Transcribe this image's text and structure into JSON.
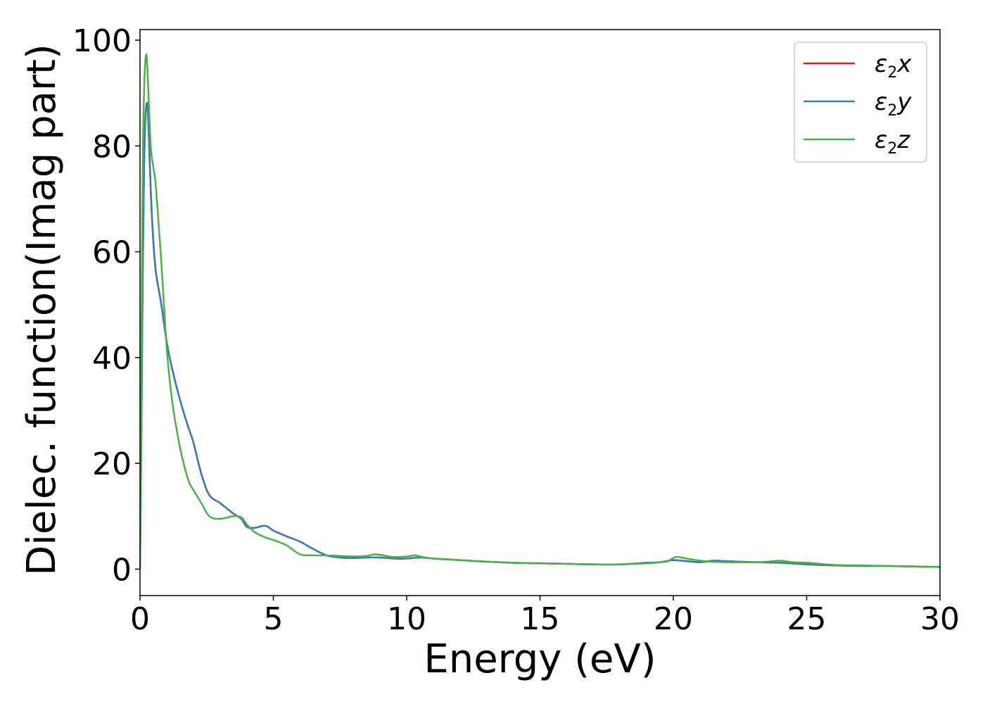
{
  "chart_data": {
    "type": "line",
    "xlabel": "Energy (eV)",
    "ylabel": "Dielec. function(Imag part)",
    "xlim": [
      0,
      30
    ],
    "ylim": [
      -5,
      102
    ],
    "xticks": [
      0,
      5,
      10,
      15,
      20,
      25,
      30
    ],
    "yticks": [
      0,
      20,
      40,
      60,
      80,
      100
    ],
    "grid": false,
    "legend_position": "top-right",
    "series": [
      {
        "name": "ε2x",
        "legend_base": "ε",
        "legend_sub": "2",
        "legend_var": "x",
        "color": "#e41a1c",
        "x": [
          0,
          0.05,
          0.1,
          0.15,
          0.2,
          0.25,
          0.3,
          0.4,
          0.5,
          0.6,
          0.8,
          1.0,
          1.2,
          1.5,
          1.8,
          2.0,
          2.3,
          2.6,
          3.0,
          3.5,
          3.8,
          4.0,
          4.3,
          4.7,
          5.0,
          5.5,
          6.0,
          6.5,
          7.0,
          7.5,
          8.0,
          8.5,
          9.0,
          9.5,
          10.0,
          10.5,
          11.0,
          12.0,
          13.0,
          14.0,
          15.0,
          16.0,
          17.0,
          18.0,
          19.0,
          19.5,
          20.0,
          20.5,
          21.0,
          21.5,
          22.0,
          22.5,
          23.0,
          24.0,
          25.0,
          26.0,
          27.0,
          28.0,
          29.0,
          30.0
        ],
        "values": [
          0,
          25,
          55,
          75,
          85,
          88,
          86,
          72,
          62,
          56,
          50,
          43,
          38,
          32,
          27,
          24,
          18,
          14,
          12.5,
          10.5,
          9.5,
          8,
          7.8,
          8.2,
          7.3,
          6.2,
          5.2,
          3.8,
          2.6,
          2.2,
          2.1,
          2.2,
          2.2,
          2.0,
          2.0,
          2.2,
          2.0,
          1.7,
          1.4,
          1.2,
          1.1,
          1.0,
          0.9,
          0.9,
          1.2,
          1.3,
          1.7,
          1.5,
          1.3,
          1.6,
          1.5,
          1.4,
          1.3,
          1.2,
          0.9,
          0.7,
          0.6,
          0.6,
          0.5,
          0.4
        ]
      },
      {
        "name": "ε2y",
        "legend_base": "ε",
        "legend_sub": "2",
        "legend_var": "y",
        "color": "#377eb8",
        "x": [
          0,
          0.05,
          0.1,
          0.15,
          0.2,
          0.25,
          0.3,
          0.4,
          0.5,
          0.6,
          0.8,
          1.0,
          1.2,
          1.5,
          1.8,
          2.0,
          2.3,
          2.6,
          3.0,
          3.5,
          3.8,
          4.0,
          4.3,
          4.7,
          5.0,
          5.5,
          6.0,
          6.5,
          7.0,
          7.5,
          8.0,
          8.5,
          9.0,
          9.5,
          10.0,
          10.5,
          11.0,
          12.0,
          13.0,
          14.0,
          15.0,
          16.0,
          17.0,
          18.0,
          19.0,
          19.5,
          20.0,
          20.5,
          21.0,
          21.5,
          22.0,
          22.5,
          23.0,
          24.0,
          25.0,
          26.0,
          27.0,
          28.0,
          29.0,
          30.0
        ],
        "values": [
          0,
          25,
          55,
          75,
          85,
          88,
          86,
          72,
          62,
          56,
          50,
          43,
          38,
          32,
          27,
          24,
          18,
          14,
          12.5,
          10.5,
          9.5,
          8,
          7.8,
          8.2,
          7.3,
          6.2,
          5.2,
          3.8,
          2.6,
          2.2,
          2.1,
          2.2,
          2.2,
          2.0,
          2.0,
          2.2,
          2.0,
          1.7,
          1.4,
          1.2,
          1.1,
          1.0,
          0.9,
          0.9,
          1.2,
          1.3,
          1.7,
          1.5,
          1.3,
          1.6,
          1.5,
          1.4,
          1.3,
          1.2,
          0.9,
          0.7,
          0.6,
          0.6,
          0.5,
          0.4
        ]
      },
      {
        "name": "ε2z",
        "legend_base": "ε",
        "legend_sub": "2",
        "legend_var": "z",
        "color": "#4daf4a",
        "x": [
          0,
          0.05,
          0.1,
          0.15,
          0.2,
          0.25,
          0.3,
          0.4,
          0.5,
          0.6,
          0.8,
          1.0,
          1.2,
          1.5,
          1.8,
          2.0,
          2.3,
          2.6,
          3.0,
          3.5,
          3.8,
          4.0,
          4.3,
          4.7,
          5.0,
          5.5,
          6.0,
          6.5,
          7.0,
          7.5,
          8.0,
          8.5,
          8.8,
          9.0,
          9.5,
          10.0,
          10.3,
          10.5,
          11.0,
          12.0,
          13.0,
          14.0,
          15.0,
          16.0,
          17.0,
          18.0,
          19.0,
          19.5,
          19.8,
          20.1,
          20.5,
          21.0,
          21.5,
          22.0,
          22.5,
          23.0,
          23.5,
          24.0,
          24.5,
          25.0,
          26.0,
          27.0,
          28.0,
          29.0,
          30.0
        ],
        "values": [
          0,
          40,
          75,
          90,
          96,
          97,
          92,
          80,
          76,
          72,
          58,
          42,
          32,
          23,
          17,
          15,
          12.5,
          10,
          9.5,
          10,
          9.8,
          8.5,
          7,
          6,
          5.5,
          4.5,
          2.8,
          2.6,
          2.6,
          2.5,
          2.4,
          2.5,
          2.8,
          2.7,
          2.3,
          2.4,
          2.6,
          2.4,
          2.0,
          1.7,
          1.4,
          1.2,
          1.1,
          1.0,
          0.9,
          0.9,
          1.1,
          1.3,
          1.5,
          2.3,
          2.0,
          1.6,
          1.4,
          1.3,
          1.3,
          1.3,
          1.4,
          1.6,
          1.3,
          1.2,
          0.8,
          0.7,
          0.6,
          0.5,
          0.4
        ]
      }
    ]
  }
}
